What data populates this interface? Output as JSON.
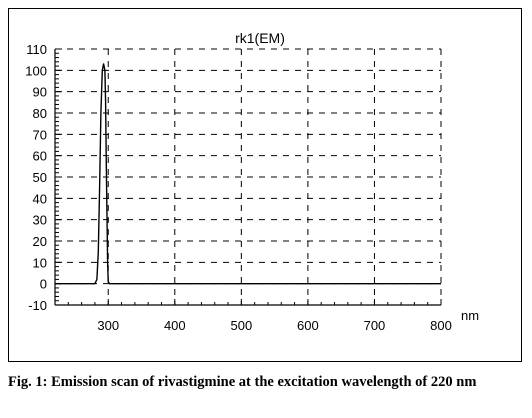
{
  "chart_data": {
    "type": "line",
    "title": "rk1(EM)",
    "xlabel": "nm",
    "ylabel": "",
    "xlim": [
      220,
      800
    ],
    "ylim": [
      -10,
      110
    ],
    "xticks": [
      300,
      400,
      500,
      600,
      700,
      800
    ],
    "yticks": [
      -10,
      0,
      10,
      20,
      30,
      40,
      50,
      60,
      70,
      80,
      90,
      100,
      110
    ],
    "grid": true,
    "legend": "none",
    "series": [
      {
        "color": "#000000",
        "x": [
          220,
          280,
          283,
          285,
          287,
          289,
          291,
          293,
          295,
          296,
          297,
          298,
          299,
          300,
          302,
          310,
          400,
          500,
          600,
          700,
          800
        ],
        "y": [
          0,
          0,
          2,
          15,
          45,
          80,
          100,
          103,
          100,
          85,
          60,
          35,
          10,
          1,
          0,
          0,
          0,
          0,
          0,
          0,
          0
        ]
      }
    ]
  },
  "caption": {
    "prefix": "Fig. 1:",
    "text": "Emission scan of rivastigmine at the excitation wavelength of 220 nm"
  }
}
